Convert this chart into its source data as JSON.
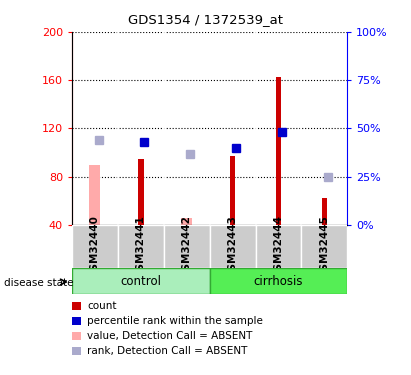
{
  "title": "GDS1354 / 1372539_at",
  "samples": [
    "GSM32440",
    "GSM32441",
    "GSM32442",
    "GSM32443",
    "GSM32444",
    "GSM32445"
  ],
  "ylim_left": [
    40,
    200
  ],
  "ylim_right": [
    0,
    100
  ],
  "yticks_left": [
    40,
    80,
    120,
    160,
    200
  ],
  "yticks_right": [
    0,
    25,
    50,
    75,
    100
  ],
  "count_values": [
    0,
    95,
    0,
    97,
    163,
    62
  ],
  "count_absent_values": [
    90,
    0,
    46,
    0,
    0,
    0
  ],
  "percentile_values": [
    0,
    43,
    0,
    40,
    48,
    0
  ],
  "percentile_absent_values": [
    44,
    0,
    37,
    0,
    0,
    25
  ],
  "count_color": "#cc0000",
  "count_absent_color": "#ffaaaa",
  "percentile_color": "#0000cc",
  "percentile_absent_color": "#aaaacc",
  "bar_width": 0.12,
  "marker_size": 6,
  "plot_bg_color": "#ffffff",
  "grid_color": "#000000",
  "control_color": "#aaeebb",
  "cirrhosis_color": "#55ee55",
  "sample_box_color": "#cccccc",
  "legend_items": [
    {
      "label": "count",
      "color": "#cc0000"
    },
    {
      "label": "percentile rank within the sample",
      "color": "#0000cc"
    },
    {
      "label": "value, Detection Call = ABSENT",
      "color": "#ffaaaa"
    },
    {
      "label": "rank, Detection Call = ABSENT",
      "color": "#aaaacc"
    }
  ]
}
